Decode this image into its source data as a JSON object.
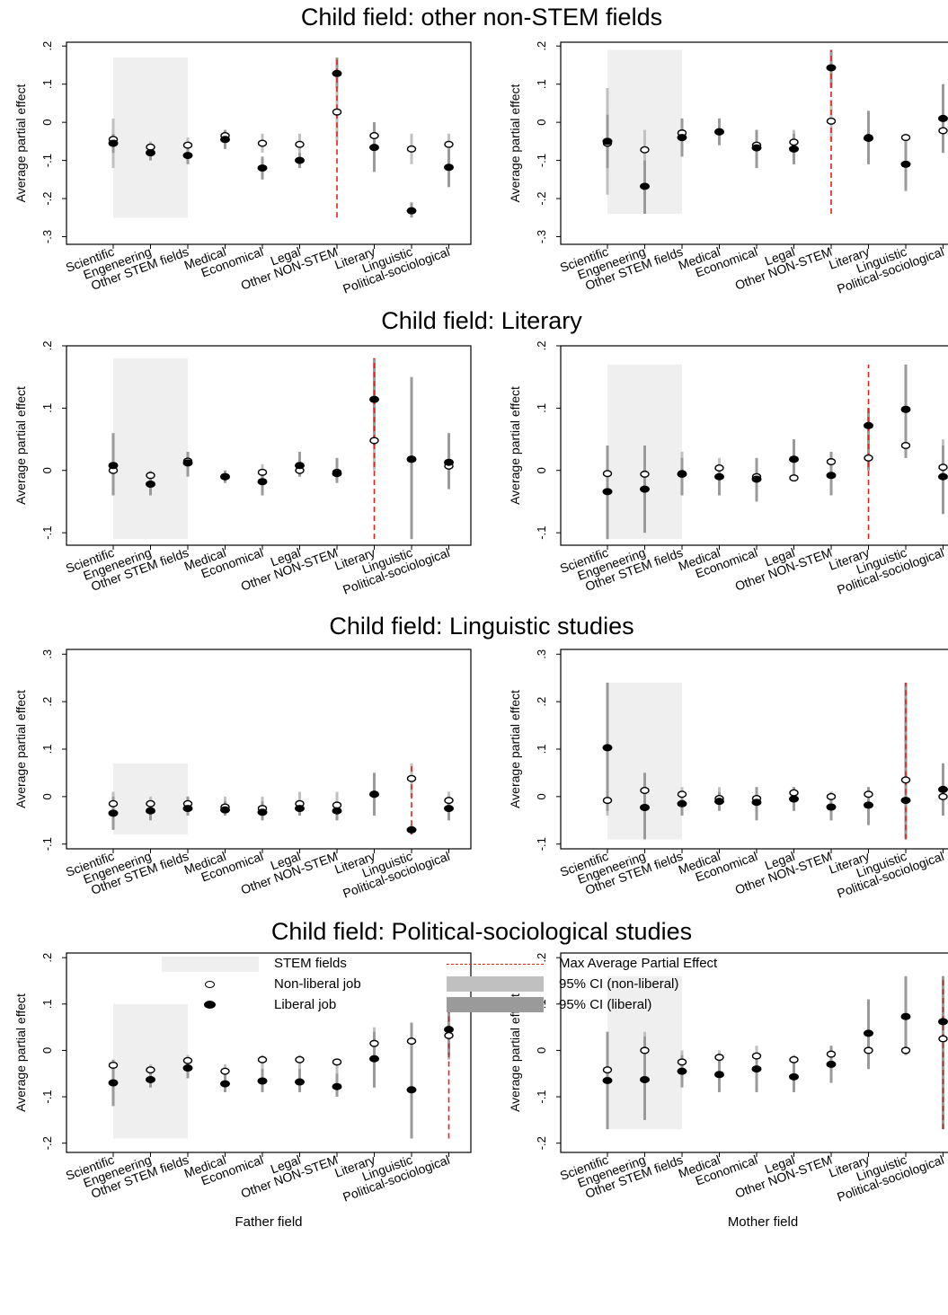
{
  "row_titles": [
    "Child field: other non-STEM fields",
    "Child field: Literary",
    "Child field: Linguistic studies",
    "Child field: Political-sociological studies"
  ],
  "y_axis_label": "Average partial effect",
  "x_axis_labels": [
    "Father field",
    "Mother field"
  ],
  "categories": [
    "Scientific",
    "Engeneering",
    "Other STEM fields",
    "Medical",
    "Economical",
    "Legal",
    "Other NON-STEM",
    "Literary",
    "Linguistic",
    "Political-sociological"
  ],
  "legend": {
    "stem": "STEM fields",
    "nonliberal": "Non-liberal job",
    "liberal": "Liberal job",
    "max": "Max Average Partial Effect",
    "ci_nonliberal": "95% CI (non-liberal)",
    "ci_liberal": "95% CI (liberal)"
  },
  "colors": {
    "stem_band": "#efefef",
    "ci_nonliberal": "#c0c0c0",
    "ci_liberal": "#9a9a9a",
    "max_line": "#e0201b",
    "marker": "#000000"
  },
  "chart_data": [
    {
      "type": "scatter",
      "row": 0,
      "parent": "Father field",
      "ylim": [
        -0.32,
        0.21
      ],
      "yticks": [
        -0.3,
        -0.2,
        -0.1,
        0,
        0.1,
        0.2
      ],
      "yticklabels": [
        "-.3",
        "-.2",
        "-.1",
        "0",
        ".1",
        ".2"
      ],
      "stem_band": [
        -0.25,
        0.17
      ],
      "max_index": 6,
      "max_range": [
        -0.25,
        0.17
      ],
      "nonliberal": [
        -0.045,
        -0.065,
        -0.06,
        -0.035,
        -0.055,
        -0.058,
        0.027,
        -0.035,
        -0.07,
        -0.058
      ],
      "liberal": [
        -0.055,
        -0.08,
        -0.087,
        -0.045,
        -0.12,
        -0.1,
        0.128,
        -0.066,
        -0.232,
        -0.118
      ],
      "ci_nl": [
        [
          -0.12,
          0.01
        ],
        [
          -0.08,
          -0.05
        ],
        [
          -0.08,
          -0.04
        ],
        [
          -0.05,
          -0.02
        ],
        [
          -0.08,
          -0.03
        ],
        [
          -0.08,
          -0.03
        ],
        [
          -0.05,
          0.1
        ],
        [
          -0.07,
          0.0
        ],
        [
          -0.11,
          -0.03
        ],
        [
          -0.09,
          -0.03
        ]
      ],
      "ci_l": [
        [
          -0.08,
          -0.03
        ],
        [
          -0.1,
          -0.06
        ],
        [
          -0.11,
          -0.06
        ],
        [
          -0.07,
          -0.02
        ],
        [
          -0.15,
          -0.09
        ],
        [
          -0.12,
          -0.08
        ],
        [
          0.09,
          0.17
        ],
        [
          -0.13,
          0.0
        ],
        [
          -0.25,
          -0.21
        ],
        [
          -0.17,
          -0.07
        ]
      ]
    },
    {
      "type": "scatter",
      "row": 0,
      "parent": "Mother field",
      "ylim": [
        -0.32,
        0.21
      ],
      "yticks": [
        -0.3,
        -0.2,
        -0.1,
        0,
        0.1,
        0.2
      ],
      "yticklabels": [
        "-.3",
        "-.2",
        "-.1",
        "0",
        ".1",
        ".2"
      ],
      "stem_band": [
        -0.24,
        0.19
      ],
      "max_index": 6,
      "max_range": [
        -0.24,
        0.19
      ],
      "nonliberal": [
        -0.055,
        -0.072,
        -0.028,
        -0.025,
        -0.06,
        -0.052,
        0.003,
        -0.04,
        -0.04,
        -0.022
      ],
      "liberal": [
        -0.05,
        -0.168,
        -0.04,
        -0.025,
        -0.067,
        -0.07,
        0.143,
        -0.042,
        -0.11,
        0.01
      ],
      "ci_nl": [
        [
          -0.19,
          0.09
        ],
        [
          -0.24,
          -0.02
        ],
        [
          -0.08,
          0.01
        ],
        [
          -0.06,
          0.01
        ],
        [
          -0.12,
          -0.02
        ],
        [
          -0.11,
          -0.02
        ],
        [
          -0.05,
          0.06
        ],
        [
          -0.11,
          0.03
        ],
        [
          -0.18,
          -0.03
        ],
        [
          -0.08,
          0.1
        ]
      ],
      "ci_l": [
        [
          -0.12,
          0.02
        ],
        [
          -0.24,
          -0.1
        ],
        [
          -0.09,
          0.01
        ],
        [
          -0.06,
          0.01
        ],
        [
          -0.12,
          -0.02
        ],
        [
          -0.11,
          -0.03
        ],
        [
          0.09,
          0.19
        ],
        [
          -0.11,
          0.03
        ],
        [
          -0.18,
          -0.05
        ],
        [
          -0.08,
          0.1
        ]
      ]
    },
    {
      "type": "scatter",
      "row": 1,
      "parent": "Father field",
      "ylim": [
        -0.12,
        0.2
      ],
      "yticks": [
        -0.1,
        0,
        0.1,
        0.2
      ],
      "yticklabels": [
        "-.1",
        "0",
        ".1",
        ".2"
      ],
      "stem_band": [
        -0.11,
        0.18
      ],
      "max_index": 7,
      "max_range": [
        -0.11,
        0.18
      ],
      "nonliberal": [
        0.0,
        -0.008,
        0.015,
        -0.01,
        -0.003,
        0.0,
        -0.003,
        0.048,
        0.018,
        0.007
      ],
      "liberal": [
        0.008,
        -0.022,
        0.012,
        -0.01,
        -0.018,
        0.008,
        -0.005,
        0.114,
        0.018,
        0.013
      ],
      "ci_nl": [
        [
          -0.04,
          0.05
        ],
        [
          -0.02,
          0.0
        ],
        [
          0.0,
          0.03
        ],
        [
          -0.02,
          0.0
        ],
        [
          -0.02,
          0.01
        ],
        [
          -0.01,
          0.02
        ],
        [
          -0.02,
          0.02
        ],
        [
          0.0,
          0.18
        ],
        [
          -0.11,
          0.15
        ],
        [
          -0.02,
          0.05
        ]
      ],
      "ci_l": [
        [
          -0.04,
          0.06
        ],
        [
          -0.04,
          -0.01
        ],
        [
          -0.01,
          0.03
        ],
        [
          -0.02,
          0.0
        ],
        [
          -0.04,
          0.0
        ],
        [
          -0.01,
          0.03
        ],
        [
          -0.02,
          0.02
        ],
        [
          0.04,
          0.18
        ],
        [
          -0.11,
          0.15
        ],
        [
          -0.03,
          0.06
        ]
      ]
    },
    {
      "type": "scatter",
      "row": 1,
      "parent": "Mother field",
      "ylim": [
        -0.12,
        0.2
      ],
      "yticks": [
        -0.1,
        0,
        0.1,
        0.2
      ],
      "yticklabels": [
        "-.1",
        "0",
        ".1",
        ".2"
      ],
      "stem_band": [
        -0.11,
        0.17
      ],
      "max_index": 7,
      "max_range": [
        -0.11,
        0.17
      ],
      "nonliberal": [
        -0.005,
        -0.006,
        -0.005,
        0.004,
        -0.01,
        -0.012,
        0.014,
        0.02,
        0.04,
        0.005
      ],
      "liberal": [
        -0.034,
        -0.03,
        -0.006,
        -0.01,
        -0.014,
        0.018,
        -0.008,
        0.072,
        0.098,
        -0.01
      ],
      "ci_nl": [
        [
          -0.11,
          0.04
        ],
        [
          -0.1,
          0.04
        ],
        [
          -0.04,
          0.03
        ],
        [
          -0.02,
          0.02
        ],
        [
          -0.04,
          0.02
        ],
        [
          -0.01,
          0.05
        ],
        [
          -0.04,
          0.02
        ],
        [
          0.0,
          0.1
        ],
        [
          0.02,
          0.17
        ],
        [
          -0.06,
          0.05
        ]
      ],
      "ci_l": [
        [
          -0.11,
          0.04
        ],
        [
          -0.1,
          0.04
        ],
        [
          -0.04,
          0.02
        ],
        [
          -0.04,
          0.01
        ],
        [
          -0.05,
          0.02
        ],
        [
          -0.01,
          0.05
        ],
        [
          -0.04,
          0.03
        ],
        [
          0.0,
          0.1
        ],
        [
          0.02,
          0.17
        ],
        [
          -0.07,
          0.04
        ]
      ]
    },
    {
      "type": "scatter",
      "row": 2,
      "parent": "Father field",
      "ylim": [
        -0.11,
        0.31
      ],
      "yticks": [
        -0.1,
        0,
        0.1,
        0.2,
        0.3
      ],
      "yticklabels": [
        "-.1",
        "0",
        ".1",
        ".2",
        ".3"
      ],
      "stem_band": [
        -0.08,
        0.07
      ],
      "max_index": 8,
      "max_range": [
        -0.08,
        0.07
      ],
      "nonliberal": [
        -0.015,
        -0.015,
        -0.015,
        -0.022,
        -0.025,
        -0.015,
        -0.018,
        0.005,
        0.038,
        -0.008
      ],
      "liberal": [
        -0.035,
        -0.03,
        -0.025,
        -0.028,
        -0.033,
        -0.025,
        -0.03,
        0.005,
        -0.07,
        -0.025
      ],
      "ci_nl": [
        [
          -0.06,
          0.01
        ],
        [
          -0.04,
          0.0
        ],
        [
          -0.04,
          0.0
        ],
        [
          -0.04,
          0.0
        ],
        [
          -0.05,
          0.0
        ],
        [
          -0.04,
          0.01
        ],
        [
          -0.05,
          0.01
        ],
        [
          -0.04,
          0.05
        ],
        [
          0.0,
          0.07
        ],
        [
          -0.05,
          0.01
        ]
      ],
      "ci_l": [
        [
          -0.07,
          0.0
        ],
        [
          -0.05,
          -0.01
        ],
        [
          -0.04,
          0.0
        ],
        [
          -0.04,
          -0.01
        ],
        [
          -0.05,
          -0.01
        ],
        [
          -0.04,
          -0.01
        ],
        [
          -0.05,
          -0.01
        ],
        [
          -0.04,
          0.05
        ],
        [
          -0.08,
          -0.06
        ],
        [
          -0.05,
          0.0
        ]
      ]
    },
    {
      "type": "scatter",
      "row": 2,
      "parent": "Mother field",
      "ylim": [
        -0.11,
        0.31
      ],
      "yticks": [
        -0.1,
        0,
        0.1,
        0.2,
        0.3
      ],
      "yticklabels": [
        "-.1",
        "0",
        ".1",
        ".2",
        ".3"
      ],
      "stem_band": [
        -0.09,
        0.24
      ],
      "max_index": 8,
      "max_range": [
        -0.09,
        0.24
      ],
      "nonliberal": [
        -0.008,
        0.013,
        0.005,
        -0.004,
        -0.004,
        0.008,
        0.0,
        0.005,
        0.035,
        0.0
      ],
      "liberal": [
        0.103,
        -0.023,
        -0.015,
        -0.01,
        -0.012,
        -0.005,
        -0.022,
        -0.018,
        -0.008,
        0.015
      ],
      "ci_nl": [
        [
          -0.04,
          0.24
        ],
        [
          -0.09,
          0.05
        ],
        [
          -0.04,
          0.02
        ],
        [
          -0.03,
          0.02
        ],
        [
          -0.04,
          0.02
        ],
        [
          -0.03,
          0.02
        ],
        [
          -0.05,
          0.01
        ],
        [
          -0.06,
          0.02
        ],
        [
          -0.09,
          0.24
        ],
        [
          -0.04,
          0.07
        ]
      ],
      "ci_l": [
        [
          -0.03,
          0.24
        ],
        [
          -0.09,
          0.05
        ],
        [
          -0.04,
          0.01
        ],
        [
          -0.03,
          0.01
        ],
        [
          -0.05,
          0.02
        ],
        [
          -0.03,
          0.02
        ],
        [
          -0.05,
          0.01
        ],
        [
          -0.06,
          0.02
        ],
        [
          -0.09,
          0.24
        ],
        [
          -0.04,
          0.07
        ]
      ]
    },
    {
      "type": "scatter",
      "row": 3,
      "parent": "Father field",
      "ylim": [
        -0.22,
        0.21
      ],
      "yticks": [
        -0.2,
        -0.1,
        0,
        0.1,
        0.2
      ],
      "yticklabels": [
        "-.2",
        "-.1",
        "0",
        ".1",
        ".2"
      ],
      "stem_band": [
        -0.19,
        0.1
      ],
      "max_index": 9,
      "max_range": [
        -0.19,
        0.1
      ],
      "nonliberal": [
        -0.032,
        -0.042,
        -0.022,
        -0.045,
        -0.02,
        -0.02,
        -0.025,
        0.015,
        0.02,
        0.032
      ],
      "liberal": [
        -0.07,
        -0.063,
        -0.038,
        -0.072,
        -0.066,
        -0.068,
        -0.078,
        -0.018,
        -0.085,
        0.045
      ],
      "ci_nl": [
        [
          -0.12,
          -0.02
        ],
        [
          -0.08,
          -0.03
        ],
        [
          -0.06,
          -0.01
        ],
        [
          -0.09,
          -0.03
        ],
        [
          -0.09,
          -0.01
        ],
        [
          -0.09,
          -0.01
        ],
        [
          -0.1,
          -0.02
        ],
        [
          -0.08,
          0.05
        ],
        [
          -0.19,
          0.06
        ],
        [
          -0.02,
          0.1
        ]
      ],
      "ci_l": [
        [
          -0.12,
          -0.02
        ],
        [
          -0.08,
          -0.04
        ],
        [
          -0.06,
          -0.02
        ],
        [
          -0.09,
          -0.05
        ],
        [
          -0.09,
          -0.04
        ],
        [
          -0.09,
          -0.04
        ],
        [
          -0.1,
          -0.05
        ],
        [
          -0.08,
          0.04
        ],
        [
          -0.19,
          0.06
        ],
        [
          -0.01,
          0.1
        ]
      ]
    },
    {
      "type": "scatter",
      "row": 3,
      "parent": "Mother field",
      "ylim": [
        -0.22,
        0.21
      ],
      "yticks": [
        -0.2,
        -0.1,
        0,
        0.1,
        0.2
      ],
      "yticklabels": [
        "-.2",
        "-.1",
        "0",
        ".1",
        ".2"
      ],
      "stem_band": [
        -0.17,
        0.16
      ],
      "max_index": 9,
      "max_range": [
        -0.17,
        0.16
      ],
      "nonliberal": [
        -0.042,
        0.0,
        -0.025,
        -0.015,
        -0.012,
        -0.02,
        -0.008,
        0.0,
        0.0,
        0.025
      ],
      "liberal": [
        -0.065,
        -0.063,
        -0.045,
        -0.052,
        -0.04,
        -0.057,
        -0.03,
        0.037,
        0.073,
        0.062
      ],
      "ci_nl": [
        [
          -0.17,
          0.04
        ],
        [
          -0.15,
          0.04
        ],
        [
          -0.07,
          0.0
        ],
        [
          -0.08,
          0.0
        ],
        [
          -0.09,
          0.01
        ],
        [
          -0.09,
          -0.01
        ],
        [
          -0.07,
          0.01
        ],
        [
          -0.04,
          0.11
        ],
        [
          -0.01,
          0.16
        ],
        [
          -0.17,
          0.16
        ]
      ],
      "ci_l": [
        [
          -0.17,
          0.04
        ],
        [
          -0.15,
          0.03
        ],
        [
          -0.08,
          -0.01
        ],
        [
          -0.09,
          -0.02
        ],
        [
          -0.09,
          -0.01
        ],
        [
          -0.09,
          -0.02
        ],
        [
          -0.07,
          0.01
        ],
        [
          -0.04,
          0.11
        ],
        [
          -0.01,
          0.16
        ],
        [
          -0.17,
          0.16
        ]
      ]
    }
  ]
}
